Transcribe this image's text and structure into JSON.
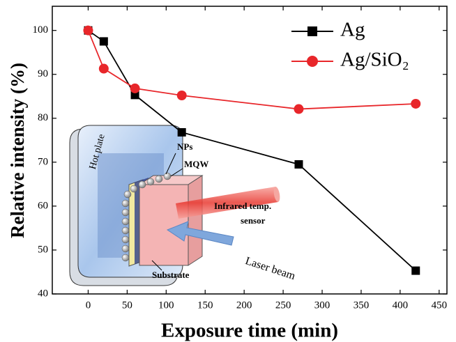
{
  "chart_data": {
    "type": "line",
    "x_label": "Exposure time (min)",
    "y_label": "Relative intensity (%)",
    "xlim": [
      -46,
      460
    ],
    "ylim": [
      40,
      105.5
    ],
    "xticks": [
      0,
      50,
      100,
      150,
      200,
      250,
      300,
      350,
      400,
      450
    ],
    "yticks": [
      40,
      50,
      60,
      70,
      80,
      90,
      100
    ],
    "legend": "upper right",
    "series": [
      {
        "name": "Ag",
        "color": "#000000",
        "marker": "square",
        "x": [
          0,
          20,
          60,
          120,
          270,
          420
        ],
        "values": [
          100,
          97.5,
          85.3,
          76.8,
          69.5,
          45.3
        ]
      },
      {
        "name": "Ag/SiO₂",
        "color": "#e8262a",
        "marker": "circle",
        "x": [
          0,
          20,
          60,
          120,
          270,
          420
        ],
        "values": [
          100,
          91.3,
          86.8,
          85.2,
          82.1,
          83.3
        ]
      }
    ],
    "inset_labels": [
      "Hot plate",
      "NPs",
      "MQW",
      "Infrared temp.",
      "sensor",
      "Laser beam",
      "Substrate"
    ]
  }
}
